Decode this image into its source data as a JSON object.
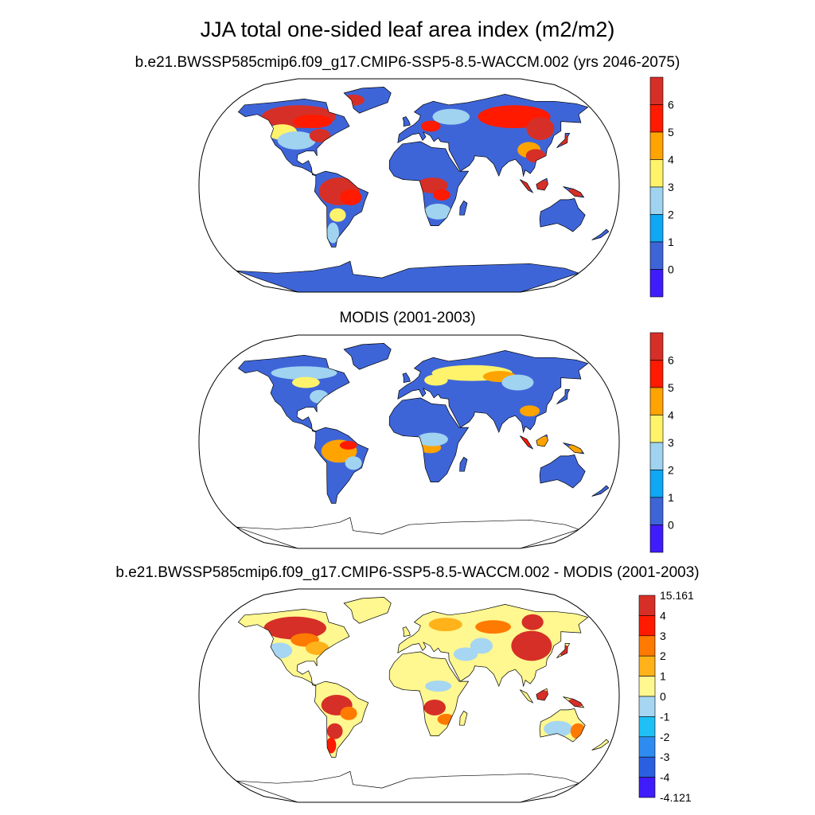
{
  "title": "JJA total one-sided leaf area index (m2/m2)",
  "panels": [
    {
      "title": "b.e21.BWSSP585cmip6.f09_g17.CMIP6-SSP5-8.5-WACCM.002 (yrs 2046-2075)",
      "colorbar": {
        "labels": [
          "6",
          "5",
          "4",
          "3",
          "2",
          "1",
          "0"
        ],
        "colors": [
          "#D62F27",
          "#FF1A00",
          "#FFA300",
          "#FFF36B",
          "#A0D3F0",
          "#0FA8F5",
          "#3E65D8",
          "#3F1CFB"
        ]
      }
    },
    {
      "title": "MODIS (2001-2003)",
      "colorbar": {
        "labels": [
          "6",
          "5",
          "4",
          "3",
          "2",
          "1",
          "0"
        ],
        "colors": [
          "#D62F27",
          "#FF1A00",
          "#FFA300",
          "#FFF36B",
          "#A0D3F0",
          "#0FA8F5",
          "#3E65D8",
          "#3F1CFB"
        ]
      }
    },
    {
      "title": "b.e21.BWSSP585cmip6.f09_g17.CMIP6-SSP5-8.5-WACCM.002 - MODIS (2001-2003)",
      "colorbar": {
        "labels": [
          "15.161",
          "4",
          "3",
          "2",
          "1",
          "0",
          "-1",
          "-2",
          "-3",
          "-4",
          "-4.121"
        ],
        "colors": [
          "#D62F27",
          "#FF1A00",
          "#FF7A00",
          "#FFB21A",
          "#FFF78F",
          "#A6D6F2",
          "#1FC0F5",
          "#2E8CF0",
          "#2A5FE0",
          "#3F1CFB"
        ]
      }
    }
  ]
}
